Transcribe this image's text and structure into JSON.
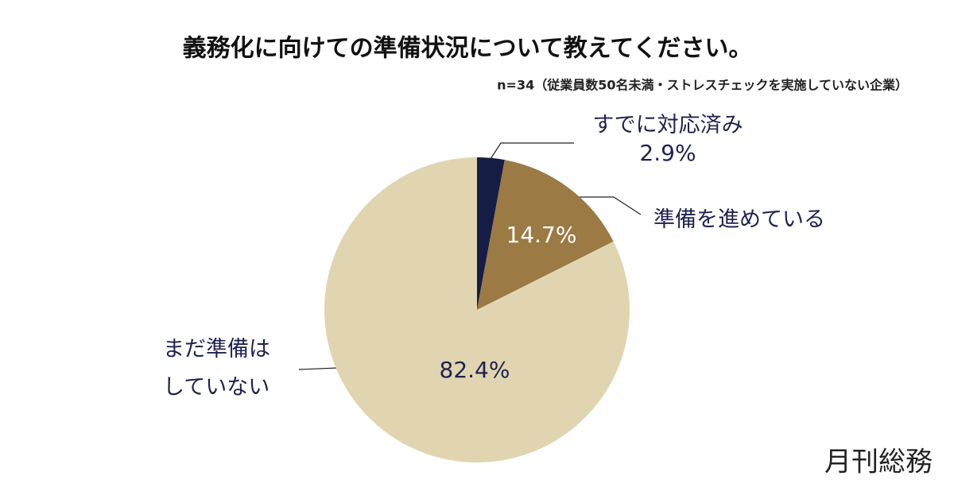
{
  "chart_data": {
    "type": "pie",
    "title": "義務化に向けての準備状況について教えてください。",
    "subtitle": "n=34（従業員数50名未満・ストレスチェックを実施していない企業）",
    "categories": [
      "すでに対応済み",
      "準備を進めている",
      "まだ準備は\nしていない"
    ],
    "values": [
      2.9,
      14.7,
      82.4
    ],
    "value_labels": [
      "2.9%",
      "14.7%",
      "82.4%"
    ],
    "colors": [
      "#151d45",
      "#9b7a43",
      "#e1d5b1"
    ]
  },
  "brand": "月刊総務"
}
